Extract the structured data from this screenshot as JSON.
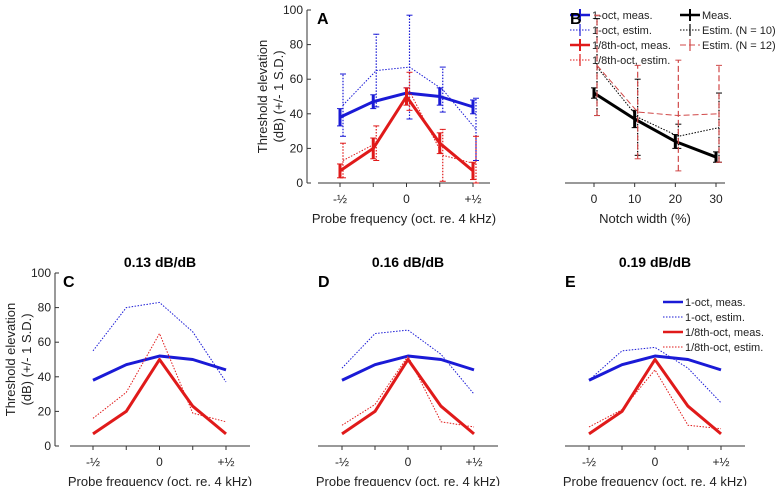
{
  "colors": {
    "blue": "#1a1ad6",
    "red": "#e01a1a",
    "black": "#000000",
    "dashed_red": "#d04848",
    "axis": "#333333"
  },
  "chart_data": [
    {
      "id": "A",
      "panel_label": "A",
      "type": "line",
      "title": "",
      "xlabel": "Probe frequency (oct. re. 4 kHz)",
      "ylabel": "Threshold elevation (dB) (+/- 1 S.D.)",
      "ylabel_lines": [
        "Threshold elevation",
        "(dB) (+/- 1 S.D.)"
      ],
      "ylim": [
        0,
        100
      ],
      "yticks": [
        0,
        20,
        40,
        60,
        80,
        100
      ],
      "x": [
        -0.5,
        -0.25,
        0,
        0.25,
        0.5
      ],
      "xticks": [
        -0.5,
        0,
        0.5
      ],
      "xtick_labels": [
        "-½",
        "0",
        "+½"
      ],
      "legend": "top-right",
      "grid": false,
      "series": [
        {
          "name": "1-oct, meas.",
          "color": "blue",
          "style": "solid",
          "width": 3,
          "values": [
            38,
            47,
            52,
            50,
            44
          ],
          "sd": [
            5,
            4,
            3,
            5,
            4
          ]
        },
        {
          "name": "1-oct, estim.",
          "color": "blue",
          "style": "dotted",
          "width": 1,
          "values": [
            45,
            65,
            67,
            54,
            31
          ],
          "sd": [
            18,
            21,
            30,
            13,
            18
          ]
        },
        {
          "name": "1/8th-oct, meas.",
          "color": "red",
          "style": "solid",
          "width": 3,
          "values": [
            7,
            20,
            50,
            23,
            7
          ],
          "sd": [
            4,
            6,
            5,
            6,
            5
          ]
        },
        {
          "name": "1/8th-oct, estim.",
          "color": "red",
          "style": "dotted",
          "width": 1,
          "values": [
            13,
            23,
            53,
            16,
            11
          ],
          "sd": [
            10,
            10,
            11,
            15,
            16
          ]
        }
      ]
    },
    {
      "id": "B",
      "panel_label": "B",
      "type": "line",
      "title": "",
      "xlabel": "Notch width (%)",
      "ylabel": "",
      "ylim": [
        0,
        100
      ],
      "x": [
        0,
        10,
        20,
        30
      ],
      "xticks": [
        0,
        10,
        20,
        30
      ],
      "xtick_labels": [
        "0",
        "10",
        "20",
        "30"
      ],
      "legend": "top-right",
      "grid": false,
      "series": [
        {
          "name": "Meas.",
          "color": "black",
          "style": "solid",
          "width": 3,
          "values": [
            52,
            37,
            24,
            15
          ],
          "sd": [
            3,
            5,
            4,
            3
          ]
        },
        {
          "name": "Estim. (N = 10)",
          "color": "black",
          "style": "dotted",
          "width": 1,
          "values": [
            67,
            38,
            27,
            32
          ],
          "sd": [
            28,
            22,
            7,
            20
          ]
        },
        {
          "name": "Estim. (N = 12)",
          "color": "dashed_red",
          "style": "dashed",
          "width": 1,
          "values": [
            68,
            41,
            39,
            40
          ],
          "sd": [
            29,
            27,
            32,
            28
          ]
        }
      ]
    },
    {
      "id": "C",
      "panel_label": "C",
      "type": "line",
      "title": "0.13 dB/dB",
      "xlabel": "Probe frequency (oct. re. 4 kHz)",
      "ylabel": "Threshold elevation (dB) (+/- 1 S.D.)",
      "ylabel_lines": [
        "Threshold elevation",
        "(dB) (+/- 1 S.D.)"
      ],
      "ylim": [
        0,
        100
      ],
      "yticks": [
        0,
        20,
        40,
        60,
        80,
        100
      ],
      "x": [
        -0.5,
        -0.25,
        0,
        0.25,
        0.5
      ],
      "xticks": [
        -0.5,
        0,
        0.5
      ],
      "xtick_labels": [
        "-½",
        "0",
        "+½"
      ],
      "grid": false,
      "series": [
        {
          "color": "blue",
          "style": "solid",
          "width": 3,
          "values": [
            38,
            47,
            52,
            50,
            44
          ]
        },
        {
          "color": "blue",
          "style": "dotted",
          "width": 1,
          "values": [
            55,
            80,
            83,
            66,
            37
          ]
        },
        {
          "color": "red",
          "style": "solid",
          "width": 3,
          "values": [
            7,
            20,
            50,
            23,
            7
          ]
        },
        {
          "color": "red",
          "style": "dotted",
          "width": 1,
          "values": [
            16,
            31,
            65,
            19,
            14
          ]
        }
      ]
    },
    {
      "id": "D",
      "panel_label": "D",
      "type": "line",
      "title": "0.16 dB/dB",
      "xlabel": "Probe frequency (oct. re. 4 kHz)",
      "ylim": [
        0,
        100
      ],
      "x": [
        -0.5,
        -0.25,
        0,
        0.25,
        0.5
      ],
      "xticks": [
        -0.5,
        0,
        0.5
      ],
      "xtick_labels": [
        "-½",
        "0",
        "+½"
      ],
      "grid": false,
      "series": [
        {
          "color": "blue",
          "style": "solid",
          "width": 3,
          "values": [
            38,
            47,
            52,
            50,
            44
          ]
        },
        {
          "color": "blue",
          "style": "dotted",
          "width": 1,
          "values": [
            45,
            65,
            67,
            53,
            30
          ]
        },
        {
          "color": "red",
          "style": "solid",
          "width": 3,
          "values": [
            7,
            20,
            50,
            23,
            7
          ]
        },
        {
          "color": "red",
          "style": "dotted",
          "width": 1,
          "values": [
            12,
            24,
            52,
            14,
            11
          ]
        }
      ]
    },
    {
      "id": "E",
      "panel_label": "E",
      "type": "line",
      "title": "0.19 dB/dB",
      "xlabel": "Probe frequency (oct. re. 4 kHz)",
      "ylim": [
        0,
        100
      ],
      "x": [
        -0.5,
        -0.25,
        0,
        0.25,
        0.5
      ],
      "xticks": [
        -0.5,
        0,
        0.5
      ],
      "xtick_labels": [
        "-½",
        "0",
        "+½"
      ],
      "legend": "top-right",
      "grid": false,
      "series": [
        {
          "name": "1-oct, meas.",
          "color": "blue",
          "style": "solid",
          "width": 3,
          "values": [
            38,
            47,
            52,
            50,
            44
          ]
        },
        {
          "name": "1-oct, estim.",
          "color": "blue",
          "style": "dotted",
          "width": 1,
          "values": [
            38,
            55,
            57,
            45,
            25
          ]
        },
        {
          "name": "1/8th-oct, meas.",
          "color": "red",
          "style": "solid",
          "width": 3,
          "values": [
            7,
            20,
            50,
            23,
            7
          ]
        },
        {
          "name": "1/8th-oct, estim.",
          "color": "red",
          "style": "dotted",
          "width": 1,
          "values": [
            11,
            21,
            44,
            12,
            10
          ]
        }
      ]
    }
  ]
}
